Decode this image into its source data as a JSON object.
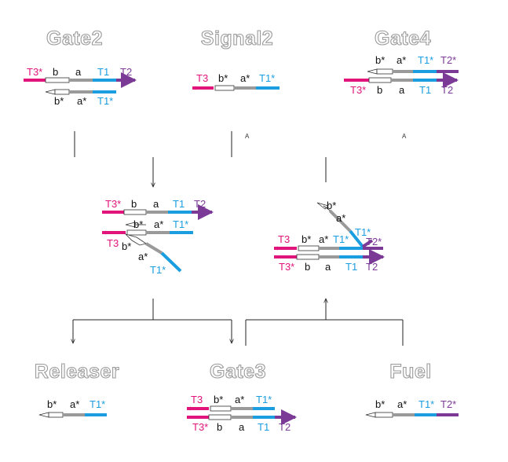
{
  "colors": {
    "magenta": "#e0147a",
    "cyan": "#1a9ee0",
    "purple": "#7a3a96",
    "gray": "#9a9a9a",
    "text": "#111111"
  },
  "titles": {
    "gate2": "Gate2",
    "signal2": "Signal2",
    "gate4": "Gate4",
    "releaser": "Releaser",
    "gate3": "Gate3",
    "fuel": "Fuel"
  },
  "domains": {
    "T1": "T1",
    "T1_star": "T1*",
    "T2": "T2",
    "T2_star": "T2*",
    "T3": "T3",
    "T3_star": "T3*",
    "a": "a",
    "a_star": "a*",
    "b": "b",
    "b_star": "b*"
  },
  "markers": {
    "signal_branch": "A",
    "gate4_branch": "A"
  }
}
